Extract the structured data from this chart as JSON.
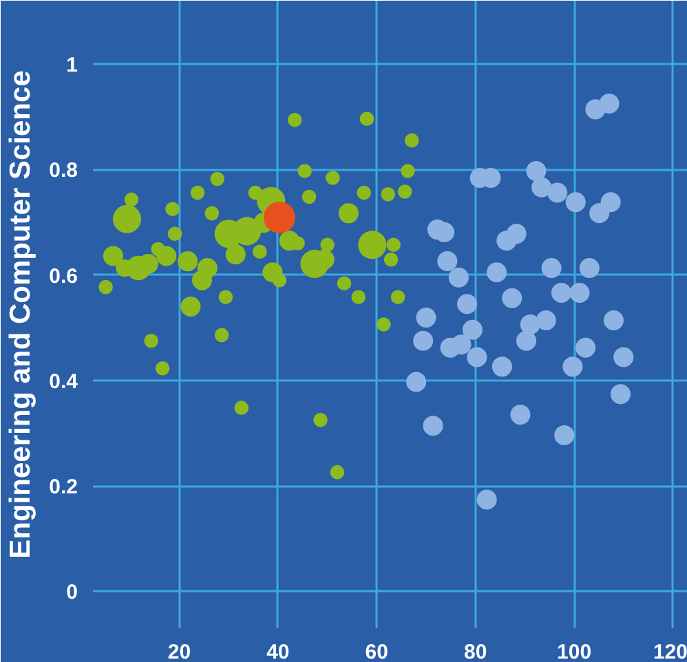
{
  "chart_data": {
    "type": "bubble",
    "ylabel": "Engineering and Computer Science",
    "xlim": [
      2.5,
      123
    ],
    "ylim": [
      -0.07,
      1.12
    ],
    "xticks": [
      20,
      40,
      60,
      80,
      100,
      120
    ],
    "yticks": [
      0,
      0.2,
      0.4,
      0.6,
      0.8,
      1
    ],
    "grid": true,
    "marker": "circle",
    "series": [
      {
        "color": "#8dbb1e",
        "x": [
          5.1,
          6.6,
          9.4,
          10.3,
          8.9,
          11.7,
          13.7,
          14.3,
          16.6,
          15.7,
          17.4,
          18.6,
          19.1,
          21.7,
          22.3,
          23.7,
          24.6,
          25.7,
          26.6,
          27.7,
          28.6,
          29.4,
          30,
          31.4,
          33.7,
          32.6,
          35.4,
          37.1,
          36.3,
          38.6,
          38.9,
          40.3,
          43.4,
          42.3,
          44,
          45.4,
          46.3,
          47.4,
          49.4,
          48.6,
          50,
          51.1,
          52,
          53.4,
          54.3,
          56.3,
          57.4,
          58,
          59.1,
          61.4,
          62.3,
          62.9,
          63.4,
          64.3,
          65.7,
          66.3,
          67.1
        ],
        "values": [
          0.577,
          0.636,
          0.706,
          0.743,
          0.613,
          0.613,
          0.621,
          0.475,
          0.423,
          0.649,
          0.636,
          0.725,
          0.678,
          0.626,
          0.54,
          0.756,
          0.59,
          0.613,
          0.717,
          0.782,
          0.486,
          0.558,
          0.678,
          0.639,
          0.683,
          0.348,
          0.756,
          0.699,
          0.644,
          0.74,
          0.605,
          0.59,
          0.894,
          0.665,
          0.66,
          0.797,
          0.748,
          0.621,
          0.629,
          0.325,
          0.657,
          0.784,
          0.226,
          0.584,
          0.717,
          0.558,
          0.756,
          0.896,
          0.657,
          0.506,
          0.753,
          0.629,
          0.657,
          0.558,
          0.758,
          0.797,
          0.855
        ],
        "sizes": [
          0.2,
          0.4,
          0.8,
          0.2,
          0.3,
          0.6,
          0.4,
          0.2,
          0.2,
          0.2,
          0.4,
          0.2,
          0.2,
          0.4,
          0.4,
          0.2,
          0.4,
          0.4,
          0.2,
          0.2,
          0.2,
          0.2,
          0.8,
          0.4,
          0.8,
          0.2,
          0.2,
          0.4,
          0.2,
          0.8,
          0.4,
          0.2,
          0.2,
          0.4,
          0.2,
          0.2,
          0.2,
          0.8,
          0.4,
          0.2,
          0.2,
          0.2,
          0.2,
          0.2,
          0.4,
          0.2,
          0.2,
          0.2,
          0.8,
          0.2,
          0.2,
          0.2,
          0.2,
          0.2,
          0.2,
          0.2,
          0.2
        ]
      },
      {
        "color": "#e8501e",
        "x": [
          40.3
        ],
        "values": [
          0.709
        ],
        "sizes": [
          1
        ]
      },
      {
        "color": "#8fb4e3",
        "x": [
          104.3,
          107.1,
          80.9,
          83.1,
          92.3,
          93.4,
          96.6,
          100.3,
          105.1,
          107.4,
          72.3,
          73.7,
          86.3,
          88.3,
          74.3,
          76.6,
          84.3,
          95.4,
          103.1,
          78.3,
          87.4,
          97.4,
          101.1,
          70,
          91.1,
          94.3,
          108,
          79.4,
          69.4,
          90.3,
          74.9,
          77.1,
          80.3,
          85.4,
          99.7,
          102.3,
          110,
          68,
          109.4,
          71.4,
          89.1,
          98,
          82.3
        ],
        "values": [
          0.914,
          0.925,
          0.784,
          0.784,
          0.797,
          0.766,
          0.756,
          0.738,
          0.717,
          0.738,
          0.686,
          0.681,
          0.665,
          0.678,
          0.626,
          0.595,
          0.605,
          0.613,
          0.613,
          0.545,
          0.556,
          0.566,
          0.566,
          0.519,
          0.506,
          0.514,
          0.514,
          0.496,
          0.475,
          0.475,
          0.462,
          0.468,
          0.444,
          0.426,
          0.426,
          0.462,
          0.444,
          0.397,
          0.374,
          0.314,
          0.335,
          0.296,
          0.174
        ],
        "sizes": [
          0.4,
          0.4,
          0.4,
          0.4,
          0.4,
          0.4,
          0.4,
          0.4,
          0.4,
          0.4,
          0.4,
          0.4,
          0.4,
          0.4,
          0.4,
          0.4,
          0.4,
          0.4,
          0.4,
          0.4,
          0.4,
          0.4,
          0.4,
          0.4,
          0.4,
          0.4,
          0.4,
          0.4,
          0.4,
          0.4,
          0.4,
          0.4,
          0.4,
          0.4,
          0.4,
          0.4,
          0.4,
          0.4,
          0.4,
          0.4,
          0.4,
          0.4,
          0.4
        ]
      }
    ]
  }
}
